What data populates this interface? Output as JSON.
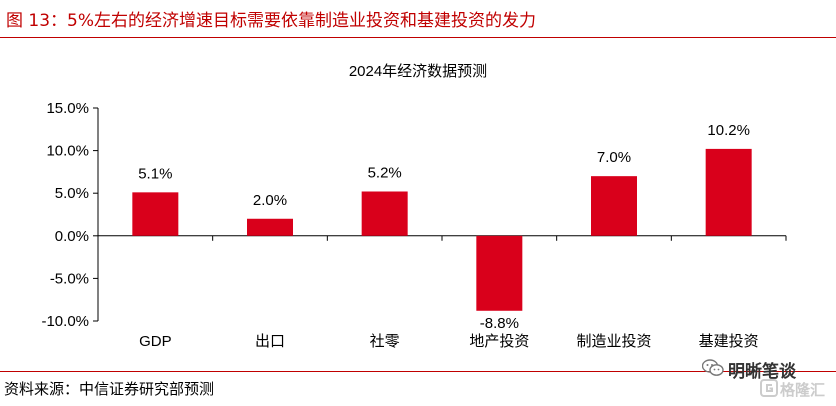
{
  "figure": {
    "caption": "图 13：5%左右的经济增速目标需要依靠制造业投资和基建投资的发力",
    "source": "资料来源：中信证券研究部预测"
  },
  "watermark": {
    "text_primary": "明晰笔谈",
    "text_secondary": "格隆汇",
    "icon_primary": "wechat-icon",
    "icon_secondary": "gelonghui-logo-icon"
  },
  "colors": {
    "bar": "#d9001b",
    "caption": "#c00000",
    "rule": "#c00000"
  },
  "chart_data": {
    "type": "bar",
    "title": "2024年经济数据预测",
    "categories": [
      "GDP",
      "出口",
      "社零",
      "地产投资",
      "制造业投资",
      "基建投资"
    ],
    "values": [
      5.1,
      2.0,
      5.2,
      -8.8,
      7.0,
      10.2
    ],
    "data_labels": [
      "5.1%",
      "2.0%",
      "5.2%",
      "-8.8%",
      "7.0%",
      "10.2%"
    ],
    "ylim": [
      -10,
      15
    ],
    "yticks": [
      15,
      10,
      5,
      0,
      -5,
      -10
    ],
    "ytick_labels": [
      "15.0%",
      "10.0%",
      "5.0%",
      "0.0%",
      "-5.0%",
      "-10.0%"
    ],
    "xlabel": "",
    "ylabel": "",
    "grid": false,
    "legend": "none"
  }
}
